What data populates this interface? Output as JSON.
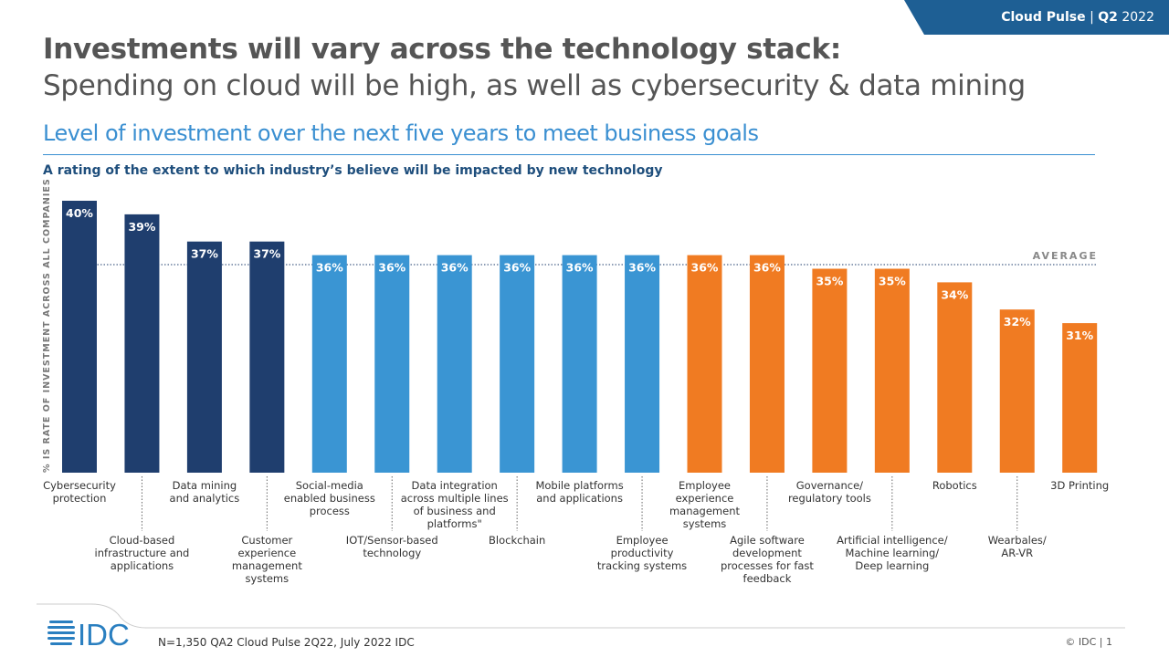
{
  "header": {
    "brand": "Cloud Pulse",
    "quarter": "Q2",
    "year": "2022",
    "separator": "|"
  },
  "title_bold": "Investments will vary across the technology stack:",
  "title_regular": "Spending on cloud will be high, as well as cybersecurity & data mining",
  "section_title": "Level of investment over the next five years to meet business goals",
  "subtitle": "A rating of the extent to which industry’s believe will be impacted by new technology",
  "chart_data": {
    "type": "bar",
    "ylabel": "% IS RATE OF INVESTMENT ACROSS ALL COMPANIES",
    "ylim": [
      20,
      40
    ],
    "average_label": "AVERAGE",
    "average": 35.3,
    "colors": {
      "top": "#1f3e6e",
      "mid": "#3a95d3",
      "low": "#f07b22"
    },
    "categories": [
      "Cybersecurity protection",
      "Cloud-based infrastructure and applications",
      "Data mining and analytics",
      "Customer experience management systems",
      "Social-media enabled business process",
      "IOT/Sensor-based technology",
      "Data integration across multiple lines of business and platforms\"",
      "Blockchain",
      "Mobile platforms and applications",
      "Employee productivity tracking systems",
      "Employee experience management systems",
      "Agile software development processes for fast feedback",
      "Governance/ regulatory tools",
      "Artificial intelligence/ Machine learning/ Deep learning",
      "Robotics",
      "Wearbales/ AR-VR",
      "3D Printing"
    ],
    "label_lines": [
      [
        "Cybersecurity",
        "protection"
      ],
      [
        "Cloud-based",
        "infrastructure and",
        "applications"
      ],
      [
        "Data mining",
        "and analytics"
      ],
      [
        "Customer",
        "experience",
        "management",
        "systems"
      ],
      [
        "Social-media",
        "enabled business",
        "process"
      ],
      [
        "IOT/Sensor-based",
        "technology"
      ],
      [
        "Data integration",
        "across multiple lines",
        "of business and",
        "platforms\""
      ],
      [
        "Blockchain"
      ],
      [
        "Mobile platforms",
        "and applications"
      ],
      [
        "Employee",
        "productivity",
        "tracking systems"
      ],
      [
        "Employee",
        "experience",
        "management",
        "systems"
      ],
      [
        "Agile software",
        "development",
        "processes for fast",
        "feedback"
      ],
      [
        "Governance/",
        "regulatory tools"
      ],
      [
        "Artificial intelligence/",
        "Machine learning/",
        "Deep learning"
      ],
      [
        "Robotics"
      ],
      [
        "Wearbales/",
        "AR-VR"
      ],
      [
        "3D Printing"
      ]
    ],
    "values": [
      40,
      39,
      37,
      37,
      36,
      36,
      36,
      36,
      36,
      36,
      36,
      36,
      35,
      35,
      34,
      32,
      31
    ],
    "value_labels": [
      "40%",
      "39%",
      "37%",
      "37%",
      "36%",
      "36%",
      "36%",
      "36%",
      "36%",
      "36%",
      "36%",
      "36%",
      "35%",
      "35%",
      "34%",
      "32%",
      "31%"
    ],
    "groups": [
      "top",
      "top",
      "top",
      "top",
      "mid",
      "mid",
      "mid",
      "mid",
      "mid",
      "mid",
      "low",
      "low",
      "low",
      "low",
      "low",
      "low",
      "low"
    ]
  },
  "footer": {
    "logo": "IDC",
    "source": "N=1,350  QA2 Cloud Pulse 2Q22, July 2022  IDC",
    "copyright": "© IDC |  1"
  }
}
